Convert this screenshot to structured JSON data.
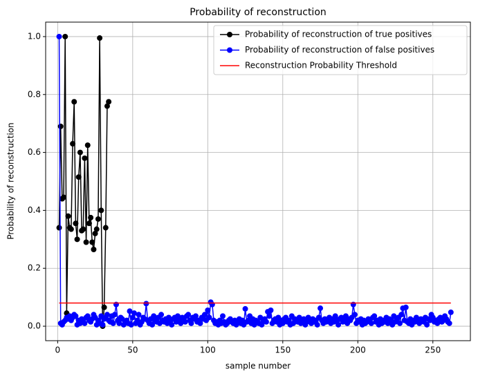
{
  "chart_data": {
    "type": "line",
    "title": "Probability of reconstruction",
    "x_label": "sample number",
    "y_label": "Probability of reconstruction",
    "xlim": [
      -8,
      275
    ],
    "ylim": [
      -0.05,
      1.05
    ],
    "xticks": [
      0,
      50,
      100,
      150,
      200,
      250
    ],
    "yticks": [
      {
        "value": 0,
        "label": "0.0"
      },
      0.2,
      0.4,
      0.6,
      0.8,
      {
        "value": 1,
        "label": "1.0"
      }
    ],
    "grid": true,
    "legend": "upper right",
    "series": [
      {
        "name": "Probability of reconstruction of true positives",
        "color": "#000000",
        "marker": true,
        "x": [
          1,
          2,
          3,
          4,
          5,
          6,
          7,
          8,
          9,
          10,
          11,
          12,
          13,
          14,
          15,
          16,
          17,
          18,
          19,
          20,
          21,
          22,
          23,
          24,
          25,
          26,
          27,
          28,
          29,
          30,
          31,
          32,
          33,
          34
        ],
        "values": [
          0.34,
          0.69,
          0.44,
          0.445,
          1.0,
          0.045,
          0.38,
          0.34,
          0.335,
          0.63,
          0.775,
          0.355,
          0.3,
          0.515,
          0.6,
          0.33,
          0.335,
          0.58,
          0.29,
          0.625,
          0.355,
          0.375,
          0.29,
          0.265,
          0.32,
          0.335,
          0.37,
          0.995,
          0.4,
          0.0,
          0.065,
          0.34,
          0.76,
          0.775
        ]
      },
      {
        "name": "Probability of reconstruction of false positives",
        "color": "#0000ff",
        "marker": true,
        "x": [
          1,
          2,
          3,
          4,
          5,
          6,
          7,
          8,
          9,
          10,
          11,
          12,
          13,
          14,
          15,
          16,
          17,
          18,
          19,
          20,
          21,
          22,
          23,
          24,
          25,
          26,
          27,
          28,
          29,
          30,
          31,
          32,
          33,
          34,
          35,
          36,
          37,
          38,
          39,
          40,
          41,
          42,
          43,
          44,
          45,
          46,
          47,
          48,
          49,
          50,
          51,
          52,
          53,
          54,
          55,
          56,
          57,
          58,
          59,
          60,
          61,
          62,
          63,
          64,
          65,
          66,
          67,
          68,
          69,
          70,
          71,
          72,
          73,
          74,
          75,
          76,
          77,
          78,
          79,
          80,
          81,
          82,
          83,
          84,
          85,
          86,
          87,
          88,
          89,
          90,
          91,
          92,
          93,
          94,
          95,
          96,
          97,
          98,
          99,
          100,
          101,
          102,
          103,
          104,
          105,
          106,
          107,
          108,
          109,
          110,
          111,
          112,
          113,
          114,
          115,
          116,
          117,
          118,
          119,
          120,
          121,
          122,
          123,
          124,
          125,
          126,
          127,
          128,
          129,
          130,
          131,
          132,
          133,
          134,
          135,
          136,
          137,
          138,
          139,
          140,
          141,
          142,
          143,
          144,
          145,
          146,
          147,
          148,
          149,
          150,
          151,
          152,
          153,
          154,
          155,
          156,
          157,
          158,
          159,
          160,
          161,
          162,
          163,
          164,
          165,
          166,
          167,
          168,
          169,
          170,
          171,
          172,
          173,
          174,
          175,
          176,
          177,
          178,
          179,
          180,
          181,
          182,
          183,
          184,
          185,
          186,
          187,
          188,
          189,
          190,
          191,
          192,
          193,
          194,
          195,
          196,
          197,
          198,
          199,
          200,
          201,
          202,
          203,
          204,
          205,
          206,
          207,
          208,
          209,
          210,
          211,
          212,
          213,
          214,
          215,
          216,
          217,
          218,
          219,
          220,
          221,
          222,
          223,
          224,
          225,
          226,
          227,
          228,
          229,
          230,
          231,
          232,
          233,
          234,
          235,
          236,
          237,
          238,
          239,
          240,
          241,
          242,
          243,
          244,
          245,
          246,
          247,
          248,
          249,
          250,
          251,
          252,
          253,
          254,
          255,
          256,
          257,
          258,
          259,
          260,
          261,
          262
        ],
        "values": [
          1.0,
          0.01,
          0.005,
          0.015,
          0.02,
          0.03,
          0.025,
          0.035,
          0.02,
          0.03,
          0.04,
          0.035,
          0.005,
          0.02,
          0.01,
          0.025,
          0.015,
          0.01,
          0.03,
          0.035,
          0.02,
          0.015,
          0.025,
          0.04,
          0.03,
          0.005,
          0.02,
          0.01,
          0.035,
          0.005,
          0.025,
          0.03,
          0.04,
          0.02,
          0.015,
          0.035,
          0.01,
          0.04,
          0.075,
          0.02,
          0.01,
          0.03,
          0.025,
          0.005,
          0.015,
          0.02,
          0.01,
          0.052,
          0.005,
          0.03,
          0.045,
          0.01,
          0.02,
          0.04,
          0.005,
          0.015,
          0.03,
          0.025,
          0.078,
          0.02,
          0.01,
          0.025,
          0.005,
          0.035,
          0.02,
          0.015,
          0.03,
          0.01,
          0.04,
          0.02,
          0.015,
          0.025,
          0.01,
          0.03,
          0.02,
          0.005,
          0.025,
          0.03,
          0.015,
          0.035,
          0.02,
          0.01,
          0.03,
          0.025,
          0.015,
          0.035,
          0.04,
          0.02,
          0.01,
          0.03,
          0.025,
          0.035,
          0.015,
          0.02,
          0.01,
          0.03,
          0.025,
          0.04,
          0.02,
          0.055,
          0.03,
          0.083,
          0.075,
          0.02,
          0.01,
          0.015,
          0.005,
          0.02,
          0.01,
          0.035,
          0.015,
          0.005,
          0.01,
          0.02,
          0.025,
          0.015,
          0.01,
          0.02,
          0.005,
          0.015,
          0.025,
          0.01,
          0.02,
          0.005,
          0.06,
          0.015,
          0.02,
          0.035,
          0.01,
          0.025,
          0.005,
          0.02,
          0.015,
          0.01,
          0.03,
          0.005,
          0.02,
          0.025,
          0.015,
          0.05,
          0.035,
          0.055,
          0.01,
          0.02,
          0.025,
          0.015,
          0.03,
          0.005,
          0.02,
          0.01,
          0.025,
          0.03,
          0.015,
          0.02,
          0.005,
          0.035,
          0.01,
          0.025,
          0.02,
          0.015,
          0.03,
          0.01,
          0.02,
          0.025,
          0.005,
          0.015,
          0.03,
          0.02,
          0.01,
          0.025,
          0.015,
          0.02,
          0.005,
          0.03,
          0.062,
          0.02,
          0.01,
          0.025,
          0.015,
          0.02,
          0.03,
          0.01,
          0.025,
          0.015,
          0.035,
          0.02,
          0.005,
          0.025,
          0.03,
          0.015,
          0.02,
          0.035,
          0.01,
          0.025,
          0.02,
          0.03,
          0.075,
          0.04,
          0.01,
          0.02,
          0.015,
          0.025,
          0.005,
          0.02,
          0.01,
          0.015,
          0.025,
          0.02,
          0.01,
          0.03,
          0.035,
          0.015,
          0.02,
          0.005,
          0.025,
          0.01,
          0.02,
          0.015,
          0.03,
          0.01,
          0.025,
          0.02,
          0.005,
          0.035,
          0.015,
          0.02,
          0.03,
          0.01,
          0.04,
          0.062,
          0.02,
          0.065,
          0.015,
          0.01,
          0.025,
          0.005,
          0.02,
          0.015,
          0.03,
          0.02,
          0.01,
          0.025,
          0.02,
          0.015,
          0.03,
          0.005,
          0.025,
          0.02,
          0.04,
          0.03,
          0.015,
          0.02,
          0.01,
          0.025,
          0.03,
          0.015,
          0.02,
          0.035,
          0.025,
          0.015,
          0.01,
          0.048
        ]
      },
      {
        "name": "Reconstruction Probability Threshold",
        "color": "#ff0000",
        "marker": false,
        "x": [
          1,
          262
        ],
        "values": [
          0.08,
          0.08
        ]
      }
    ]
  }
}
